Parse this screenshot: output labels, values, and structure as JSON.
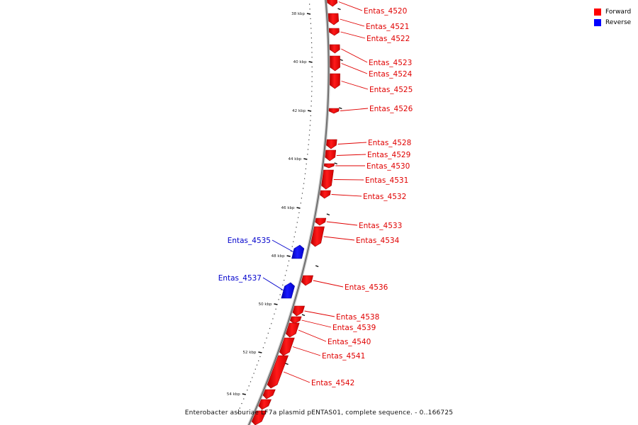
{
  "caption": "Enterobacter asburiae LF7a plasmid pENTAS01, complete sequence. - 0..166725",
  "legend": {
    "forward_label": "Forward",
    "reverse_label": "Reverse",
    "forward_color": "#ff0000",
    "reverse_color": "#0000ff"
  },
  "ticks": [
    "38 kbp",
    "40 kbp",
    "42 kbp",
    "44 kbp",
    "46 kbp",
    "48 kbp",
    "50 kbp",
    "52 kbp",
    "54 kbp"
  ],
  "genes": [
    {
      "name": "Entas_4520",
      "strand": "forward"
    },
    {
      "name": "Entas_4521",
      "strand": "forward"
    },
    {
      "name": "Entas_4522",
      "strand": "forward"
    },
    {
      "name": "Entas_4523",
      "strand": "forward"
    },
    {
      "name": "Entas_4524",
      "strand": "forward"
    },
    {
      "name": "Entas_4525",
      "strand": "forward"
    },
    {
      "name": "Entas_4526",
      "strand": "forward"
    },
    {
      "name": "Entas_4528",
      "strand": "forward"
    },
    {
      "name": "Entas_4529",
      "strand": "forward"
    },
    {
      "name": "Entas_4530",
      "strand": "forward"
    },
    {
      "name": "Entas_4531",
      "strand": "forward"
    },
    {
      "name": "Entas_4532",
      "strand": "forward"
    },
    {
      "name": "Entas_4533",
      "strand": "forward"
    },
    {
      "name": "Entas_4534",
      "strand": "forward"
    },
    {
      "name": "Entas_4535",
      "strand": "reverse"
    },
    {
      "name": "Entas_4536",
      "strand": "forward"
    },
    {
      "name": "Entas_4537",
      "strand": "reverse"
    },
    {
      "name": "Entas_4538",
      "strand": "forward"
    },
    {
      "name": "Entas_4539",
      "strand": "forward"
    },
    {
      "name": "Entas_4540",
      "strand": "forward"
    },
    {
      "name": "Entas_4541",
      "strand": "forward"
    },
    {
      "name": "Entas_4542",
      "strand": "forward"
    }
  ]
}
